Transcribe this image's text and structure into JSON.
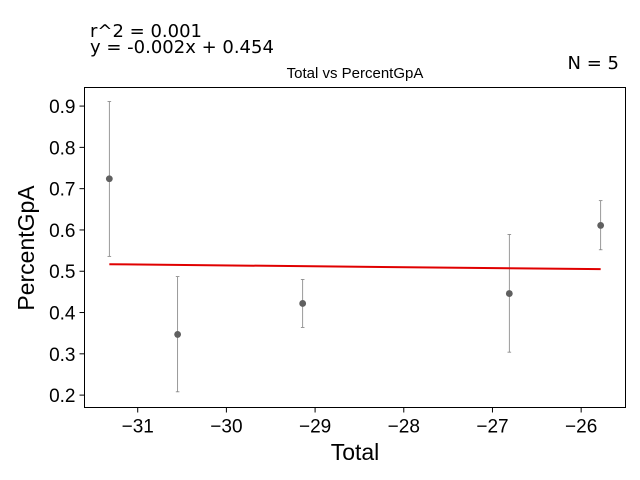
{
  "chart_data": {
    "type": "scatter",
    "title": "Total vs PercentGpA",
    "xlabel": "Total",
    "ylabel": "PercentGpA",
    "annotations": {
      "r2": "r^2 = 0.001",
      "equation": "y = -0.002x + 0.454",
      "n": "N = 5"
    },
    "xlim": [
      -31.6,
      -25.5
    ],
    "ylim": [
      0.17,
      0.945
    ],
    "x_ticks": [
      -31,
      -30,
      -29,
      -28,
      -27,
      -26
    ],
    "x_tick_labels": [
      "−31",
      "−30",
      "−29",
      "−28",
      "−27",
      "−26"
    ],
    "y_ticks": [
      0.2,
      0.3,
      0.4,
      0.5,
      0.6,
      0.7,
      0.8,
      0.9
    ],
    "y_tick_labels": [
      "0.2",
      "0.3",
      "0.4",
      "0.5",
      "0.6",
      "0.7",
      "0.8",
      "0.9"
    ],
    "points": [
      {
        "x": -31.32,
        "y": 0.724,
        "err_low": 0.536,
        "err_high": 0.911
      },
      {
        "x": -30.55,
        "y": 0.347,
        "err_low": 0.208,
        "err_high": 0.487
      },
      {
        "x": -29.14,
        "y": 0.422,
        "err_low": 0.364,
        "err_high": 0.48
      },
      {
        "x": -26.81,
        "y": 0.446,
        "err_low": 0.304,
        "err_high": 0.589
      },
      {
        "x": -25.78,
        "y": 0.611,
        "err_low": 0.552,
        "err_high": 0.671
      }
    ],
    "fit_line": {
      "x_start": -31.32,
      "y_start": 0.517,
      "x_end": -25.78,
      "y_end": 0.505
    },
    "colors": {
      "point": "#606060",
      "errorbar": "#808080",
      "fit": "#e00000"
    },
    "grid": false
  }
}
